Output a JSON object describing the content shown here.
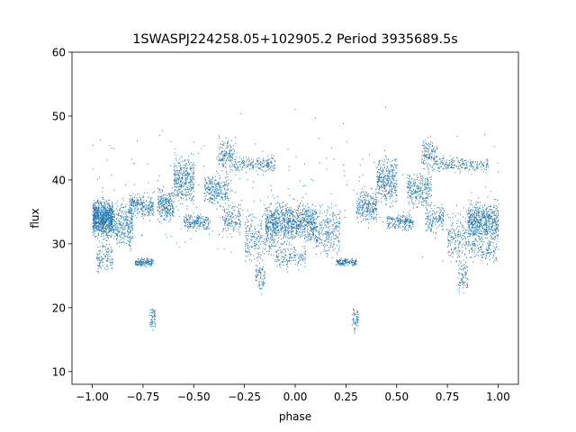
{
  "chart_data": {
    "type": "scatter",
    "title": "1SWASPJ224258.05+102905.2 Period 3935689.5s",
    "xlabel": "phase",
    "ylabel": "flux",
    "xlim": [
      -1.1,
      1.1
    ],
    "ylim": [
      8,
      60
    ],
    "x_ticks": [
      -1.0,
      -0.75,
      -0.5,
      -0.25,
      0.0,
      0.25,
      0.5,
      0.75,
      1.0
    ],
    "x_tick_labels": [
      "−1.00",
      "−0.75",
      "−0.50",
      "−0.25",
      "0.00",
      "0.25",
      "0.50",
      "0.75",
      "1.00"
    ],
    "y_ticks": [
      10,
      20,
      30,
      40,
      50,
      60
    ],
    "y_tick_labels": [
      "10",
      "20",
      "30",
      "40",
      "50",
      "60"
    ],
    "grid": false,
    "point_color": "#1f77b4",
    "clusters": [
      {
        "x0": -1.0,
        "x1": -0.9,
        "y": 34,
        "spread": 2.2,
        "n": 900
      },
      {
        "x0": -0.98,
        "x1": -0.9,
        "y": 28,
        "spread": 2.0,
        "n": 120
      },
      {
        "x0": -0.9,
        "x1": -0.8,
        "y": 33,
        "spread": 3.0,
        "n": 300
      },
      {
        "x0": -0.82,
        "x1": -0.7,
        "y": 36,
        "spread": 1.5,
        "n": 250
      },
      {
        "x0": -0.79,
        "x1": -0.7,
        "y": 27.2,
        "spread": 0.5,
        "n": 150
      },
      {
        "x0": -0.72,
        "x1": -0.69,
        "y": 18.5,
        "spread": 1.5,
        "n": 60
      },
      {
        "x0": -0.68,
        "x1": -0.6,
        "y": 36,
        "spread": 2.0,
        "n": 250
      },
      {
        "x0": -0.6,
        "x1": -0.5,
        "y": 40,
        "spread": 3.0,
        "n": 350
      },
      {
        "x0": -0.55,
        "x1": -0.42,
        "y": 33.5,
        "spread": 1.0,
        "n": 200
      },
      {
        "x0": -0.45,
        "x1": -0.33,
        "y": 38.5,
        "spread": 2.0,
        "n": 250
      },
      {
        "x0": -0.38,
        "x1": -0.3,
        "y": 44,
        "spread": 2.0,
        "n": 150
      },
      {
        "x0": -0.36,
        "x1": -0.27,
        "y": 34,
        "spread": 2.0,
        "n": 150
      },
      {
        "x0": -0.3,
        "x1": -0.1,
        "y": 42.5,
        "spread": 1.0,
        "n": 200
      },
      {
        "x0": -0.25,
        "x1": -0.1,
        "y": 31,
        "spread": 3.0,
        "n": 250
      },
      {
        "x0": -0.2,
        "x1": -0.15,
        "y": 25,
        "spread": 2.0,
        "n": 80
      },
      {
        "x0": -0.15,
        "x1": 0.1,
        "y": 33.5,
        "spread": 2.5,
        "n": 900
      },
      {
        "x0": -0.1,
        "x1": 0.05,
        "y": 28,
        "spread": 1.5,
        "n": 150
      },
      {
        "x0": 0.1,
        "x1": 0.22,
        "y": 32,
        "spread": 3.0,
        "n": 250
      },
      {
        "x0": 0.2,
        "x1": 0.3,
        "y": 27.2,
        "spread": 0.5,
        "n": 150
      },
      {
        "x0": 0.28,
        "x1": 0.31,
        "y": 18.5,
        "spread": 1.5,
        "n": 60
      },
      {
        "x0": 0.3,
        "x1": 0.4,
        "y": 36,
        "spread": 2.0,
        "n": 250
      },
      {
        "x0": 0.4,
        "x1": 0.5,
        "y": 40,
        "spread": 3.0,
        "n": 350
      },
      {
        "x0": 0.45,
        "x1": 0.58,
        "y": 33.5,
        "spread": 1.0,
        "n": 200
      },
      {
        "x0": 0.55,
        "x1": 0.67,
        "y": 38.5,
        "spread": 2.0,
        "n": 250
      },
      {
        "x0": 0.62,
        "x1": 0.7,
        "y": 44,
        "spread": 2.0,
        "n": 150
      },
      {
        "x0": 0.64,
        "x1": 0.73,
        "y": 34,
        "spread": 2.0,
        "n": 150
      },
      {
        "x0": 0.7,
        "x1": 0.95,
        "y": 42.5,
        "spread": 1.0,
        "n": 200
      },
      {
        "x0": 0.75,
        "x1": 0.9,
        "y": 31,
        "spread": 3.0,
        "n": 250
      },
      {
        "x0": 0.8,
        "x1": 0.85,
        "y": 25,
        "spread": 2.0,
        "n": 80
      },
      {
        "x0": 0.85,
        "x1": 1.0,
        "y": 33.5,
        "spread": 2.5,
        "n": 600
      },
      {
        "x0": 0.9,
        "x1": 1.0,
        "y": 29,
        "spread": 1.5,
        "n": 100
      },
      {
        "x0": -1.0,
        "x1": 1.0,
        "y": 38,
        "spread": 9.0,
        "n": 250
      }
    ]
  }
}
